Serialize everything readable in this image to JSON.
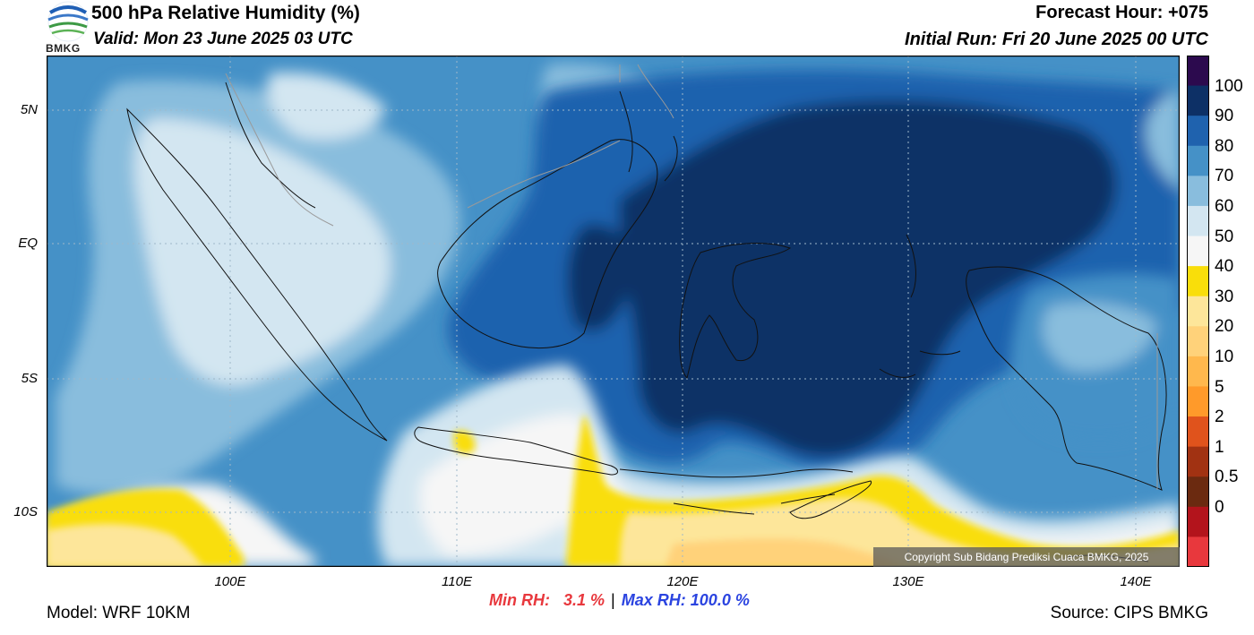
{
  "header": {
    "title": "500 hPa Relative Humidity (%)",
    "valid": "Valid: Mon 23 June 2025 03 UTC",
    "forecast_hour": "Forecast Hour: +075",
    "initial_run": "Initial Run: Fri 20 June 2025 00 UTC",
    "logo_text": "BMKG"
  },
  "footer": {
    "model": "Model: WRF 10KM",
    "source": "Source: CIPS BMKG",
    "min_label": "Min RH:",
    "min_value": "3.1 %",
    "separator": "|",
    "max_label": "Max RH:",
    "max_value": "100.0 %",
    "copyright": "Copyright Sub Bidang Prediksi Cuaca BMKG, 2025"
  },
  "axes": {
    "y_labels": [
      "5N",
      "EQ",
      "5S",
      "10S"
    ],
    "x_labels": [
      "100E",
      "110E",
      "120E",
      "130E",
      "140E"
    ]
  },
  "colorbar": {
    "labels": [
      "100",
      "90",
      "80",
      "70",
      "60",
      "50",
      "40",
      "30",
      "20",
      "10",
      "5",
      "2",
      "1",
      "0.5",
      "0"
    ],
    "colors": [
      "#2c0a4e",
      "#0d3066",
      "#1f62ae",
      "#4591c7",
      "#89bddd",
      "#d3e6f1",
      "#f6f6f6",
      "#f9de0a",
      "#fde69a",
      "#ffd27a",
      "#ffb84d",
      "#ff9a2a",
      "#e0531c",
      "#a13212",
      "#6b2a10",
      "#b3141c",
      "#e8383d"
    ]
  },
  "map": {
    "extent": {
      "lon": [
        92,
        142
      ],
      "lat": [
        -12,
        7
      ]
    },
    "gridlines": true
  }
}
